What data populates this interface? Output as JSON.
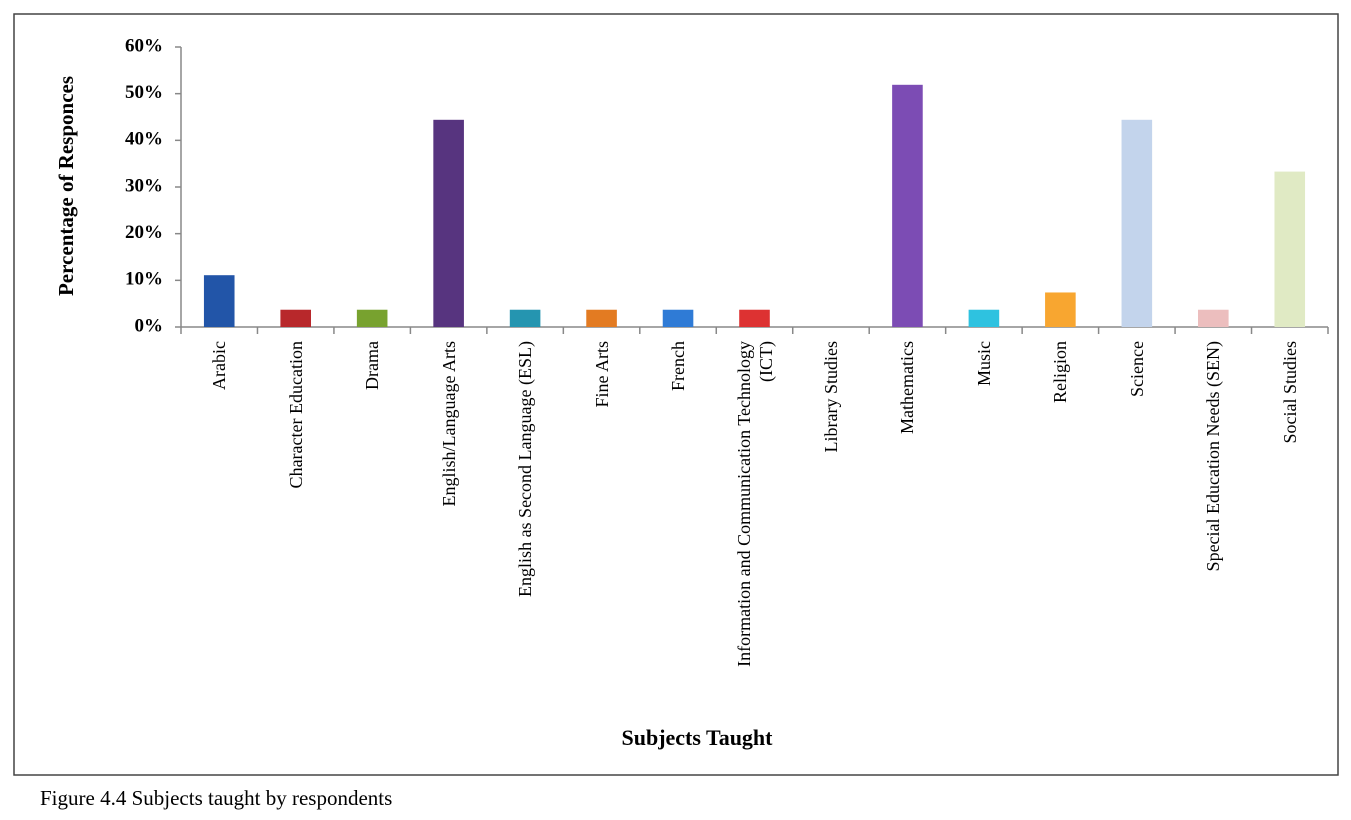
{
  "chart_data": {
    "type": "bar",
    "caption": "Figure 4.4  Subjects taught by respondents",
    "x_label": "Subjects Taught",
    "y_label": "Percentage of Responces",
    "categories": [
      "Arabic",
      "Character Education",
      "Drama",
      "English/Language Arts",
      "English as Second Language (ESL)",
      "Fine Arts",
      "French",
      "Information and Communication Technology (ICT)",
      "Library Studies",
      "Mathematics",
      "Music",
      "Religion",
      "Science",
      "Special Education Needs (SEN)",
      "Social Studies"
    ],
    "values": [
      11.1,
      3.7,
      3.7,
      44.4,
      3.7,
      3.7,
      3.7,
      3.7,
      0,
      51.9,
      3.7,
      7.4,
      44.4,
      3.7,
      33.3
    ],
    "colors": [
      "#2255a8",
      "#b8282b",
      "#78a22f",
      "#57347f",
      "#2595b0",
      "#e37b22",
      "#2f7bd6",
      "#dd3232",
      "#888888",
      "#7c4cb4",
      "#2ec2e0",
      "#f8a630",
      "#c3d4ec",
      "#ecbebe",
      "#e0eac4"
    ],
    "ylim": [
      0,
      60
    ],
    "yticks": [
      {
        "value": 0,
        "label": "0%"
      },
      {
        "value": 10,
        "label": "10%"
      },
      {
        "value": 20,
        "label": "20%"
      },
      {
        "value": 30,
        "label": "30%"
      },
      {
        "value": 40,
        "label": "40%"
      },
      {
        "value": 50,
        "label": "50%"
      },
      {
        "value": 60,
        "label": "60%"
      }
    ],
    "grid": false
  }
}
